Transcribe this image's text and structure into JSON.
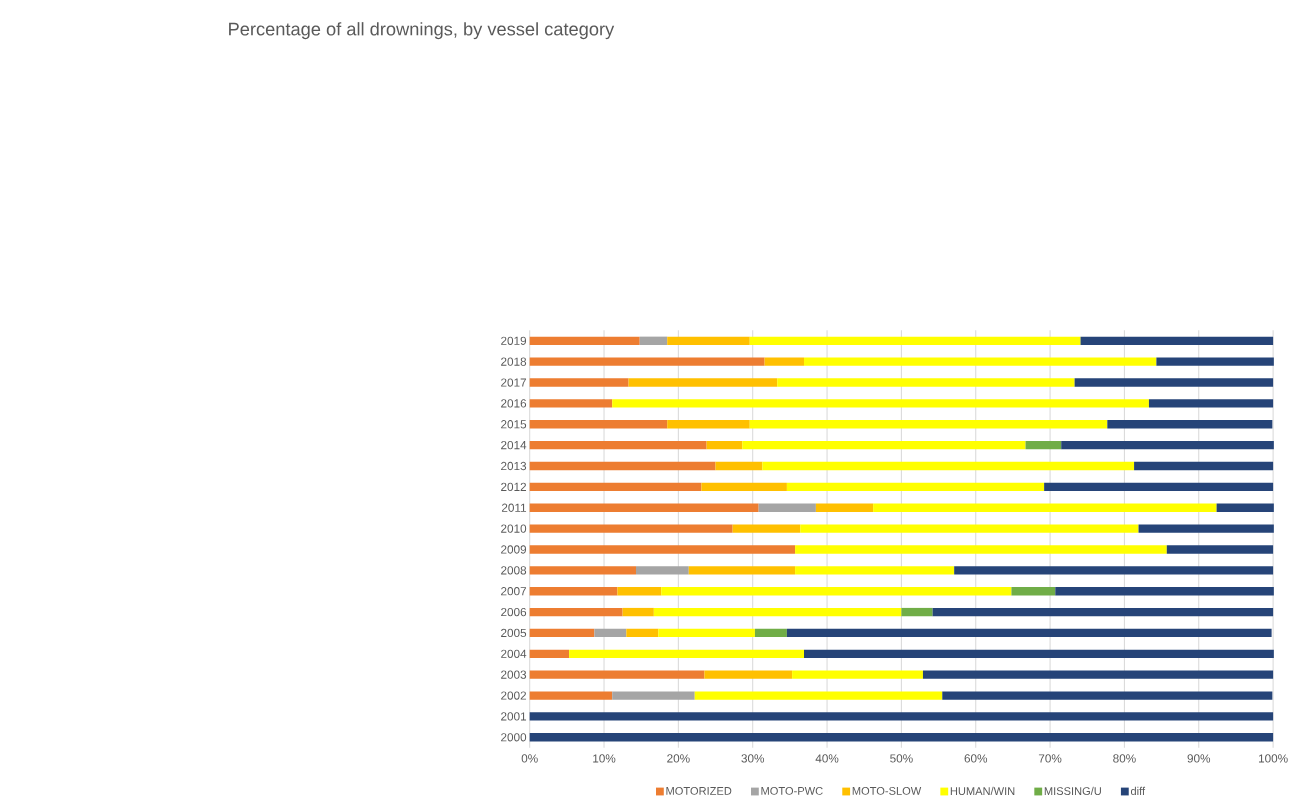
{
  "chart_data": {
    "type": "bar",
    "orientation": "horizontal",
    "stacked": true,
    "title": "Percentage of all drownings, by vessel category",
    "categories": [
      "2019",
      "2018",
      "2017",
      "2016",
      "2015",
      "2014",
      "2013",
      "2012",
      "2011",
      "2010",
      "2009",
      "2008",
      "2007",
      "2006",
      "2005",
      "2004",
      "2003",
      "2002",
      "2001",
      "2000"
    ],
    "series": [
      {
        "name": "MOTORIZED",
        "color": "#ed7d31",
        "values": [
          14.8,
          31.6,
          13.3,
          11.1,
          18.5,
          23.8,
          25,
          23.1,
          30.8,
          27.3,
          35.7,
          14.3,
          11.8,
          12.5,
          8.7,
          5.3,
          23.5,
          11.1,
          null,
          null
        ]
      },
      {
        "name": "MOTO-PWC",
        "color": "#a5a5a5",
        "values": [
          3.7,
          null,
          null,
          null,
          null,
          null,
          null,
          null,
          7.7,
          null,
          null,
          7.1,
          null,
          null,
          4.3,
          null,
          null,
          11.1,
          null,
          null
        ]
      },
      {
        "name": "MOTO-SLOW",
        "color": "#ffc000",
        "values": [
          11.1,
          5.3,
          20,
          null,
          11.1,
          4.8,
          6.3,
          11.5,
          7.7,
          9.1,
          null,
          14.3,
          5.9,
          4.2,
          4.3,
          null,
          11.8,
          null,
          null,
          null
        ]
      },
      {
        "name": "HUMAN/WIN",
        "color": "#ffff00",
        "values": [
          44.5,
          47.4,
          40,
          72.2,
          48.1,
          38.1,
          50,
          34.6,
          46.2,
          45.5,
          50,
          21.4,
          47.1,
          33.3,
          13.0,
          31.6,
          17.6,
          33.3,
          null,
          null
        ]
      },
      {
        "name": "MISSING/U",
        "color": "#70ad47",
        "values": [
          null,
          null,
          null,
          null,
          null,
          4.8,
          null,
          null,
          null,
          null,
          null,
          null,
          5.9,
          4.2,
          4.3,
          null,
          null,
          null,
          null,
          null
        ]
      },
      {
        "name": "diff",
        "color": "#264478",
        "values": [
          25.9,
          15.8,
          26.7,
          16.7,
          22.2,
          28.6,
          18.7,
          30.8,
          7.7,
          18.2,
          14.3,
          42.9,
          29.4,
          45.8,
          65.2,
          63.2,
          47.1,
          44.4,
          100,
          100
        ]
      }
    ],
    "xlim": [
      0,
      100
    ],
    "xticks": [
      {
        "value": 0,
        "label": "0%"
      },
      {
        "value": 10,
        "label": "10%"
      },
      {
        "value": 20,
        "label": "20%"
      },
      {
        "value": 30,
        "label": "30%"
      },
      {
        "value": 40,
        "label": "40%"
      },
      {
        "value": 50,
        "label": "50%"
      },
      {
        "value": 60,
        "label": "60%"
      },
      {
        "value": 70,
        "label": "70%"
      },
      {
        "value": 80,
        "label": "80%"
      },
      {
        "value": 90,
        "label": "90%"
      },
      {
        "value": 100,
        "label": "100%"
      }
    ],
    "grid": "x",
    "legend": "bottom"
  }
}
